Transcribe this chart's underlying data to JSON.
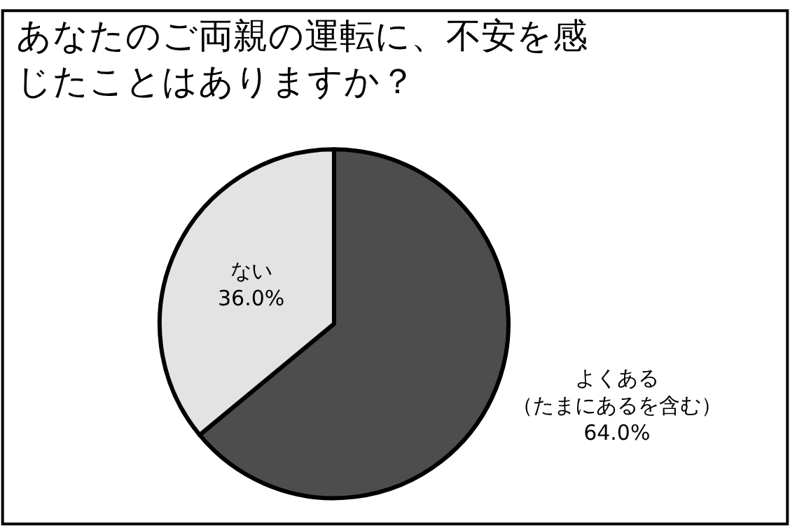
{
  "chart_data": {
    "type": "pie",
    "title": "あなたのご両親の運転に、不安を感じたことはありますか？",
    "categories": [
      "よくある（たまにあるを含む）",
      "ない"
    ],
    "values": [
      64.0,
      36.0
    ],
    "value_labels": [
      "64.0%",
      "36.0%"
    ],
    "colors": [
      "#4d4d4d",
      "#e3e3e3"
    ],
    "legend": false
  }
}
